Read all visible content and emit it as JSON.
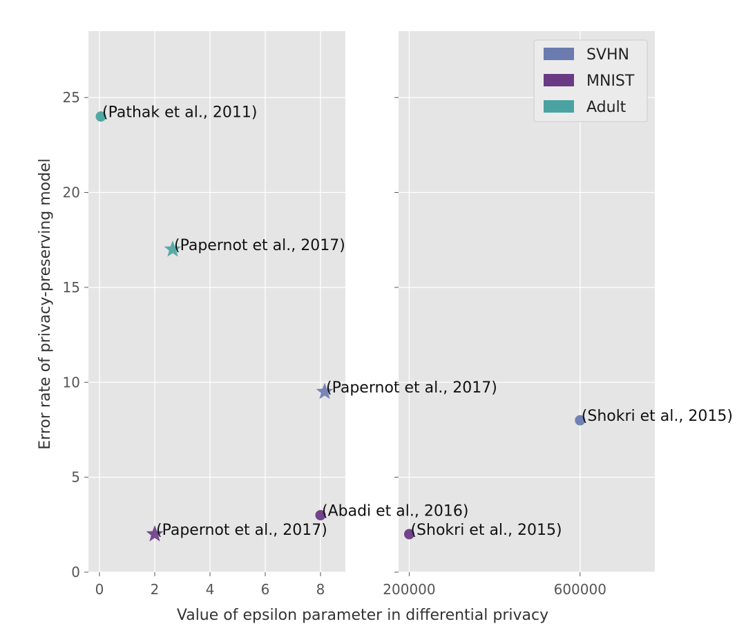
{
  "chart_data": {
    "type": "scatter",
    "xlabel": "Value of epsilon parameter in differential privacy",
    "ylabel": "Error rate of privacy-preserving model",
    "ylim": [
      0,
      28.5
    ],
    "yticks": [
      0,
      5,
      10,
      15,
      20,
      25
    ],
    "grid": true,
    "broken_x_axis": true,
    "panels": [
      {
        "xlim": [
          -0.4,
          8.9
        ],
        "xticks": [
          0,
          2,
          4,
          6,
          8
        ]
      },
      {
        "xlim": [
          175000,
          775000
        ],
        "xticks": [
          200000,
          600000
        ]
      }
    ],
    "legend": {
      "position": "top-right",
      "entries": [
        {
          "name": "SVHN",
          "color": "#6b7bb0"
        },
        {
          "name": "MNIST",
          "color": "#6a3a85"
        },
        {
          "name": "Adult",
          "color": "#4aa3a0"
        }
      ]
    },
    "points": [
      {
        "x": 0.05,
        "y": 24,
        "dataset": "Adult",
        "marker": "circle",
        "label": "(Pathak et al., 2011)"
      },
      {
        "x": 2.65,
        "y": 17,
        "dataset": "Adult",
        "marker": "star",
        "label": "(Papernot et al., 2017)"
      },
      {
        "x": 8.15,
        "y": 9.5,
        "dataset": "SVHN",
        "marker": "star",
        "label": "(Papernot et al., 2017)"
      },
      {
        "x": 600000,
        "y": 8,
        "dataset": "SVHN",
        "marker": "circle",
        "label": "(Shokri et al., 2015)"
      },
      {
        "x": 8,
        "y": 3,
        "dataset": "MNIST",
        "marker": "circle",
        "label": "(Abadi et al., 2016)"
      },
      {
        "x": 2,
        "y": 2,
        "dataset": "MNIST",
        "marker": "star",
        "label": "(Papernot et al., 2017)"
      },
      {
        "x": 200000,
        "y": 2,
        "dataset": "MNIST",
        "marker": "circle",
        "label": "(Shokri et al., 2015)"
      }
    ]
  }
}
